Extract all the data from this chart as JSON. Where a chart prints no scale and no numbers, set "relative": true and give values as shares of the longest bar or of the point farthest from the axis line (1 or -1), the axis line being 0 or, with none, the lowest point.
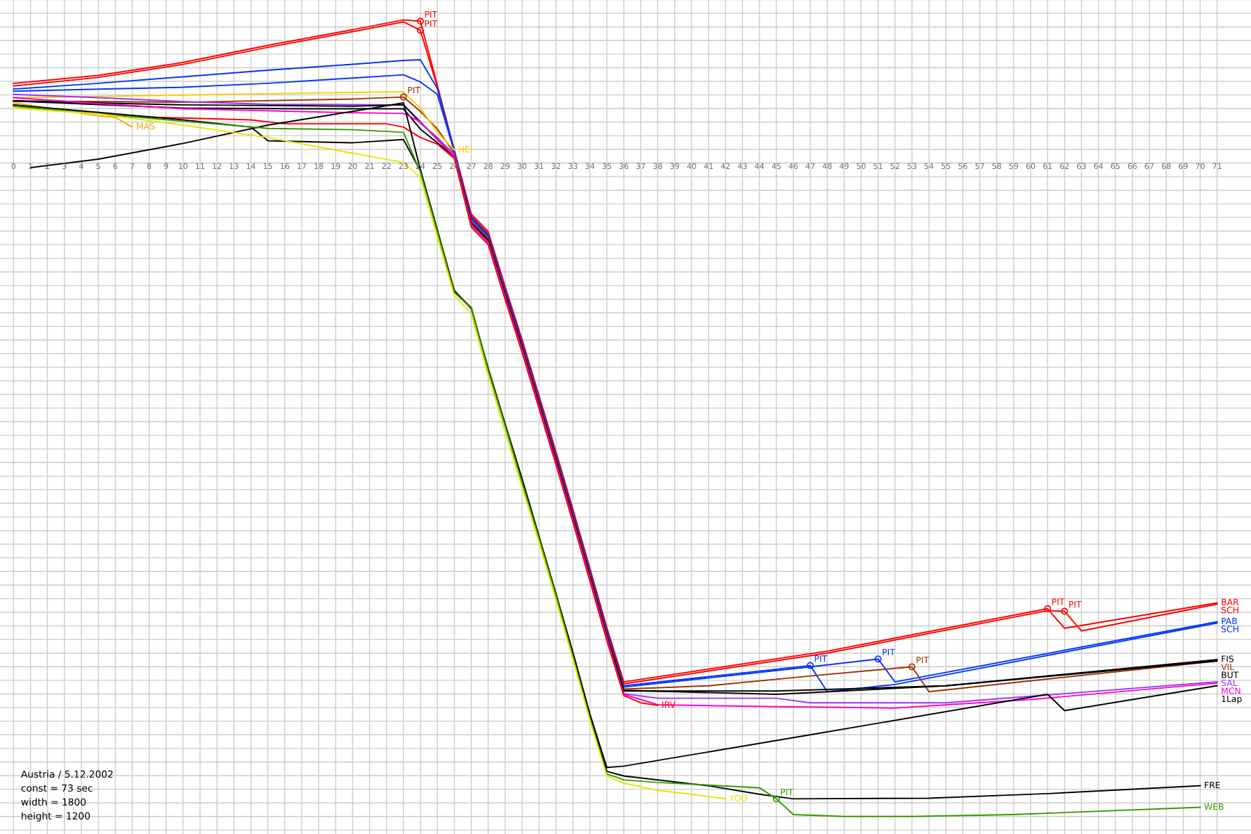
{
  "chart_data": {
    "type": "line",
    "relative": true,
    "grid": true,
    "tick_labels": "x",
    "xlim": [
      -0.8,
      73
    ],
    "xticks": [
      0,
      1,
      2,
      3,
      4,
      5,
      6,
      7,
      8,
      9,
      10,
      11,
      12,
      13,
      14,
      15,
      16,
      17,
      18,
      19,
      20,
      21,
      22,
      23,
      24,
      25,
      26,
      27,
      28,
      29,
      30,
      31,
      32,
      33,
      34,
      35,
      36,
      37,
      38,
      39,
      40,
      41,
      42,
      43,
      44,
      45,
      46,
      47,
      48,
      49,
      50,
      51,
      52,
      53,
      54,
      55,
      56,
      57,
      58,
      59,
      60,
      61,
      62,
      63,
      64,
      65,
      66,
      67,
      68,
      69,
      70,
      71
    ],
    "series": [
      {
        "name": "BAR",
        "color": "#ff0000",
        "x": [
          0,
          5,
          10,
          15,
          20,
          23,
          24,
          25,
          26,
          27,
          28,
          29,
          30,
          31,
          32,
          33,
          34,
          35,
          36,
          48,
          61,
          62,
          71
        ],
        "values": [
          0.122,
          0.134,
          0.154,
          0.18,
          0.204,
          0.219,
          0.217,
          0.119,
          0.02,
          -0.078,
          -0.105,
          -0.189,
          -0.27,
          -0.356,
          -0.442,
          -0.53,
          -0.62,
          -0.711,
          -0.794,
          -0.747,
          -0.682,
          -0.712,
          -0.673
        ]
      },
      {
        "name": "SCH",
        "color": "#ff0000",
        "x": [
          0,
          5,
          10,
          15,
          20,
          23,
          24,
          25,
          26,
          27,
          28,
          29,
          30,
          31,
          32,
          33,
          34,
          35,
          36,
          48,
          61,
          62,
          63,
          71
        ],
        "values": [
          0.118,
          0.131,
          0.151,
          0.177,
          0.201,
          0.216,
          0.203,
          0.116,
          0.018,
          -0.081,
          -0.108,
          -0.192,
          -0.273,
          -0.359,
          -0.445,
          -0.533,
          -0.623,
          -0.714,
          -0.797,
          -0.75,
          -0.685,
          -0.686,
          -0.716,
          -0.675
        ]
      },
      {
        "name": "SCH",
        "color": "#0033ff",
        "x": [
          0,
          5,
          10,
          15,
          20,
          23,
          24,
          25,
          26,
          27,
          28,
          29,
          30,
          31,
          32,
          33,
          34,
          35,
          36,
          47,
          48,
          52,
          71
        ],
        "values": [
          0.113,
          0.122,
          0.132,
          0.142,
          0.151,
          0.157,
          0.158,
          0.114,
          0.019,
          -0.083,
          -0.11,
          -0.194,
          -0.275,
          -0.361,
          -0.447,
          -0.535,
          -0.625,
          -0.716,
          -0.8,
          -0.769,
          -0.809,
          -0.798,
          -0.704
        ]
      },
      {
        "name": "PAB",
        "color": "#0033ff",
        "x": [
          0,
          5,
          10,
          15,
          20,
          23,
          24,
          25,
          26,
          27,
          28,
          29,
          30,
          31,
          32,
          33,
          34,
          35,
          36,
          47,
          51,
          52,
          71
        ],
        "values": [
          0.11,
          0.113,
          0.116,
          0.122,
          0.13,
          0.135,
          0.124,
          0.105,
          0.017,
          -0.085,
          -0.112,
          -0.196,
          -0.277,
          -0.363,
          -0.449,
          -0.537,
          -0.627,
          -0.718,
          -0.802,
          -0.771,
          -0.759,
          -0.794,
          -0.702
        ]
      },
      {
        "name": "VIL",
        "color": "#993300",
        "x": [
          0,
          10,
          20,
          23,
          24,
          25,
          26,
          27,
          28,
          29,
          30,
          31,
          32,
          33,
          34,
          35,
          36,
          41,
          47,
          53,
          54,
          71
        ],
        "values": [
          0.095,
          0.093,
          0.098,
          0.101,
          0.079,
          0.052,
          0.015,
          -0.088,
          -0.115,
          -0.199,
          -0.28,
          -0.366,
          -0.452,
          -0.54,
          -0.63,
          -0.721,
          -0.805,
          -0.8,
          -0.785,
          -0.771,
          -0.809,
          -0.762
        ]
      },
      {
        "name": "HEI",
        "color": "#ffcc00",
        "x": [
          0,
          5,
          10,
          15,
          20,
          23,
          24,
          25,
          26
        ],
        "values": [
          0.1,
          0.102,
          0.104,
          0.106,
          0.108,
          0.109,
          0.084,
          0.047,
          0.02
        ]
      },
      {
        "name": "SAL",
        "color": "#9933ff",
        "x": [
          0,
          5,
          10,
          15,
          23,
          24,
          25,
          26,
          27,
          28,
          29,
          30,
          31,
          32,
          33,
          34,
          35,
          36,
          38,
          45,
          47,
          55,
          71
        ],
        "values": [
          0.105,
          0.1,
          0.094,
          0.09,
          0.089,
          0.061,
          0.039,
          0.013,
          -0.095,
          -0.122,
          -0.206,
          -0.287,
          -0.373,
          -0.459,
          -0.547,
          -0.637,
          -0.728,
          -0.812,
          -0.819,
          -0.819,
          -0.826,
          -0.826,
          -0.794
        ]
      },
      {
        "name": "FIS",
        "color": "#000000",
        "x": [
          0,
          10,
          17,
          23,
          24,
          25,
          26,
          27,
          28,
          29,
          30,
          31,
          32,
          33,
          34,
          35,
          36,
          45,
          55,
          71
        ],
        "values": [
          0.095,
          0.084,
          0.083,
          0.083,
          0.052,
          0.031,
          0.01,
          -0.092,
          -0.119,
          -0.203,
          -0.284,
          -0.37,
          -0.456,
          -0.544,
          -0.634,
          -0.725,
          -0.808,
          -0.808,
          -0.8,
          -0.76
        ]
      },
      {
        "name": "BUT",
        "color": "#000000",
        "x": [
          0,
          10,
          20,
          23,
          24,
          25,
          26,
          27,
          28,
          29,
          30,
          31,
          32,
          33,
          34,
          35,
          36,
          45,
          55,
          71
        ],
        "values": [
          0.095,
          0.089,
          0.087,
          0.089,
          0.063,
          0.036,
          0.01,
          -0.091,
          -0.118,
          -0.202,
          -0.283,
          -0.369,
          -0.455,
          -0.543,
          -0.633,
          -0.724,
          -0.807,
          -0.813,
          -0.8,
          -0.762
        ]
      },
      {
        "name": "MCN",
        "color": "#ff00cc",
        "x": [
          0,
          5,
          10,
          20,
          23,
          24,
          25,
          26,
          27,
          28,
          29,
          30,
          31,
          32,
          33,
          34,
          35,
          36,
          38,
          45,
          52,
          60,
          71
        ],
        "values": [
          0.1,
          0.091,
          0.083,
          0.077,
          0.076,
          0.063,
          0.036,
          0.01,
          -0.094,
          -0.121,
          -0.205,
          -0.286,
          -0.372,
          -0.458,
          -0.546,
          -0.636,
          -0.727,
          -0.813,
          -0.829,
          -0.832,
          -0.834,
          -0.821,
          -0.796
        ]
      },
      {
        "name": "IRV",
        "color": "#ff0000",
        "x": [
          0,
          7,
          14,
          16,
          22,
          23,
          24,
          25,
          26,
          27,
          28,
          29,
          30,
          31,
          32,
          33,
          34,
          35,
          36,
          37,
          38
        ],
        "values": [
          0.089,
          0.071,
          0.066,
          0.06,
          0.06,
          0.055,
          0.039,
          0.029,
          0.007,
          -0.098,
          -0.125,
          -0.209,
          -0.29,
          -0.376,
          -0.462,
          -0.55,
          -0.64,
          -0.731,
          -0.815,
          -0.826,
          -0.83
        ]
      },
      {
        "name": "MAS",
        "color": "#f5a800",
        "x": [
          0,
          5,
          6,
          7
        ],
        "values": [
          0.092,
          0.072,
          0.07,
          0.055
        ]
      },
      {
        "name": "1Lap",
        "color": "#000000",
        "x": [
          1,
          5,
          10,
          15,
          20,
          23,
          24,
          25,
          26,
          27,
          28,
          29,
          30,
          31,
          32,
          33,
          34,
          35,
          36,
          47,
          61,
          62,
          71
        ],
        "values": [
          -0.007,
          0.006,
          0.03,
          0.058,
          0.079,
          0.092,
          -0.01,
          -0.102,
          -0.195,
          -0.223,
          -0.314,
          -0.399,
          -0.483,
          -0.571,
          -0.659,
          -0.749,
          -0.843,
          -0.925,
          -0.923,
          -0.875,
          -0.813,
          -0.838,
          -0.8
        ]
      },
      {
        "name": "FRE",
        "color": "#000000",
        "x": [
          0,
          10,
          14,
          15,
          20,
          23,
          24,
          25,
          26,
          27,
          28,
          29,
          30,
          31,
          32,
          33,
          34,
          35,
          36,
          41,
          44,
          46,
          54,
          61,
          70
        ],
        "values": [
          0.089,
          0.066,
          0.055,
          0.034,
          0.031,
          0.036,
          -0.012,
          -0.104,
          -0.197,
          -0.221,
          -0.316,
          -0.401,
          -0.488,
          -0.573,
          -0.661,
          -0.754,
          -0.849,
          -0.931,
          -0.938,
          -0.953,
          -0.966,
          -0.973,
          -0.972,
          -0.965,
          -0.953
        ]
      },
      {
        "name": "WEB",
        "color": "#339900",
        "x": [
          0,
          10,
          15,
          20,
          23,
          24,
          25,
          26,
          27,
          28,
          29,
          30,
          31,
          32,
          33,
          34,
          35,
          36,
          38,
          44,
          45,
          46,
          49,
          53,
          59,
          62,
          70
        ],
        "values": [
          0.087,
          0.064,
          0.053,
          0.051,
          0.047,
          -0.014,
          -0.105,
          -0.198,
          -0.222,
          -0.317,
          -0.402,
          -0.489,
          -0.574,
          -0.662,
          -0.755,
          -0.85,
          -0.935,
          -0.944,
          -0.948,
          -0.956,
          -0.973,
          -0.997,
          -1.0,
          -1.0,
          -0.997,
          -0.994,
          -0.986
        ]
      },
      {
        "name": "YOO",
        "color": "#e6e600",
        "x": [
          0,
          5,
          10,
          15,
          20,
          23,
          24,
          25,
          26,
          27,
          28,
          29,
          30,
          31,
          32,
          33,
          34,
          35,
          36,
          38,
          40,
          42
        ],
        "values": [
          0.084,
          0.075,
          0.058,
          0.039,
          0.015,
          0.001,
          -0.022,
          -0.113,
          -0.203,
          -0.23,
          -0.326,
          -0.411,
          -0.496,
          -0.581,
          -0.669,
          -0.76,
          -0.853,
          -0.938,
          -0.949,
          -0.96,
          -0.966,
          -0.973
        ]
      }
    ],
    "annotations": [
      {
        "text": "PIT",
        "x": 24,
        "y": 0.217
      },
      {
        "text": "PIT",
        "x": 24,
        "y": 0.203
      },
      {
        "text": "PIT",
        "x": 23,
        "y": 0.101
      },
      {
        "text": "PIT",
        "x": 47,
        "y": -0.769
      },
      {
        "text": "PIT",
        "x": 51,
        "y": -0.759
      },
      {
        "text": "PIT",
        "x": 53,
        "y": -0.771
      },
      {
        "text": "PIT",
        "x": 61,
        "y": -0.682
      },
      {
        "text": "PIT",
        "x": 62,
        "y": -0.686
      },
      {
        "text": "PIT",
        "x": 45,
        "y": -0.973
      },
      "Austria / 5.12.2002",
      "const = 73 sec",
      "width = 1800",
      "height = 1200"
    ]
  }
}
